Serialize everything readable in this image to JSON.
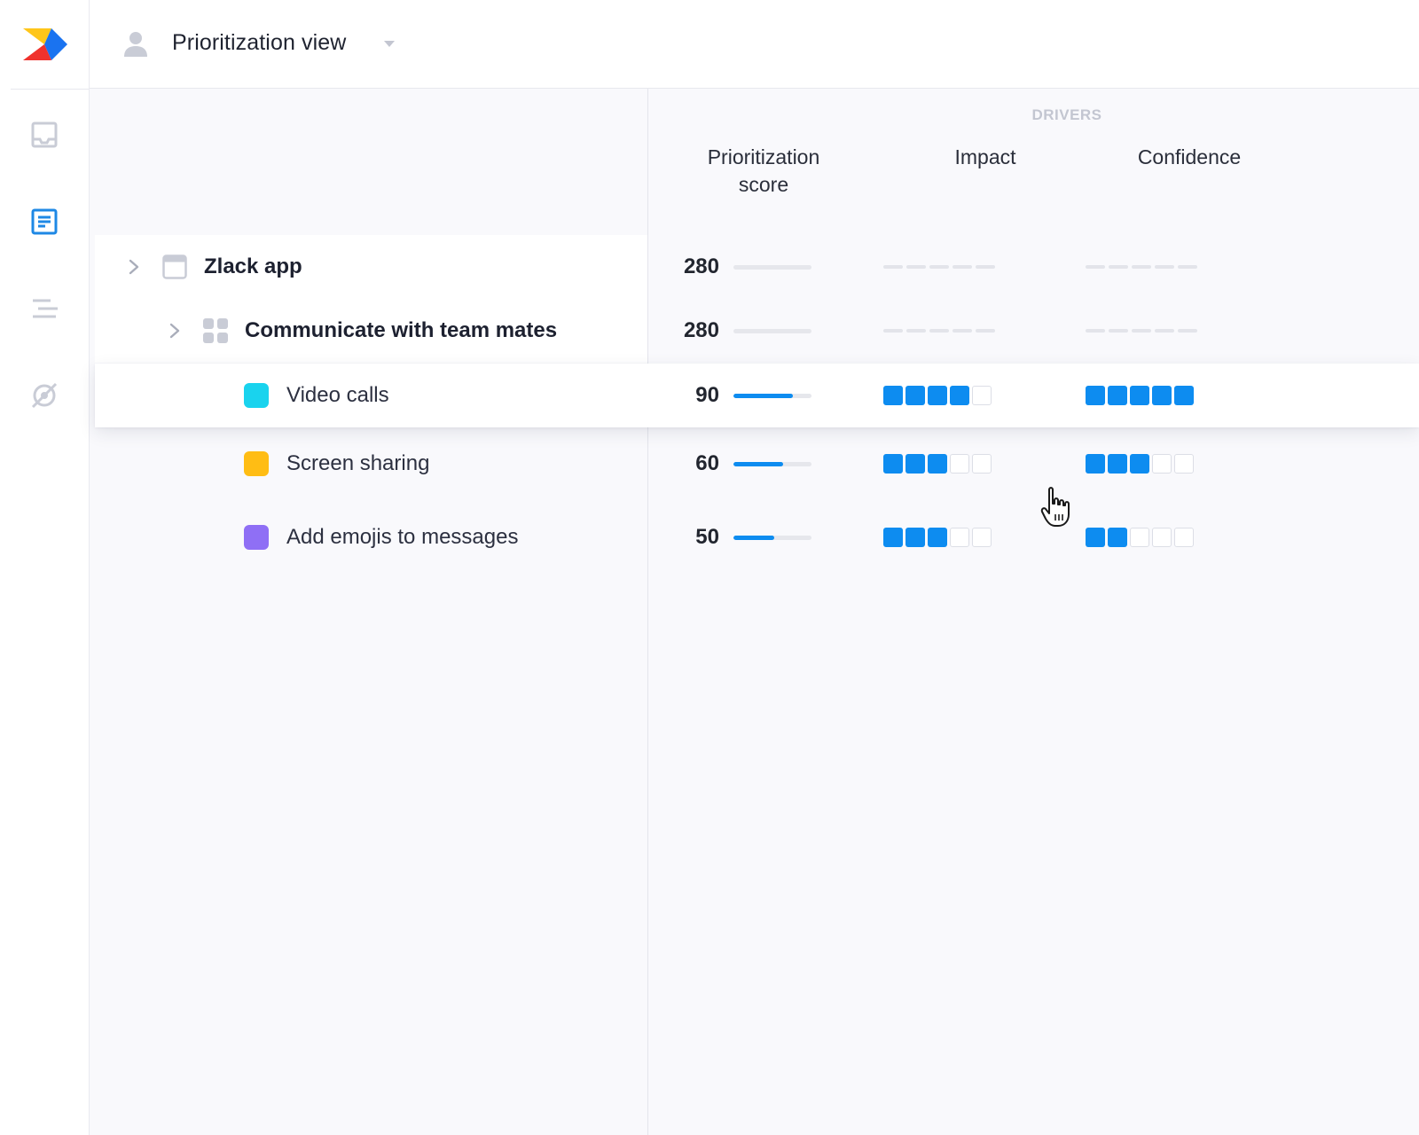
{
  "header": {
    "title": "Prioritization view"
  },
  "sidebar": {
    "items": [
      {
        "name": "inbox"
      },
      {
        "name": "features",
        "active": true
      },
      {
        "name": "roadmap"
      },
      {
        "name": "insights"
      }
    ]
  },
  "table": {
    "group_label": "DRIVERS",
    "columns": {
      "score": "Prioritization\nscore",
      "impact": "Impact",
      "confidence": "Confidence"
    },
    "rows": [
      {
        "label": "Zlack app",
        "level": 0,
        "type": "product",
        "score": 280,
        "score_fill": 0,
        "impact": null,
        "confidence": null
      },
      {
        "label": "Communicate with team mates",
        "level": 1,
        "type": "component",
        "score": 280,
        "score_fill": 0,
        "impact": null,
        "confidence": null
      },
      {
        "label": "Video calls",
        "level": 2,
        "type": "feature",
        "color": "#19d3ee",
        "score": 90,
        "score_fill": 0.76,
        "impact": 4,
        "confidence": 5,
        "active": true
      },
      {
        "label": "Screen sharing",
        "level": 2,
        "type": "feature",
        "color": "#ffbd14",
        "score": 60,
        "score_fill": 0.64,
        "impact": 3,
        "confidence": 3
      },
      {
        "label": "Add emojis to messages",
        "level": 2,
        "type": "feature",
        "color": "#8f6ff5",
        "score": 50,
        "score_fill": 0.52,
        "impact": 3,
        "confidence": 2
      }
    ],
    "rating_max": 5
  },
  "colors": {
    "accent": "#0d8cf0",
    "active_nav": "#1e88e5"
  }
}
